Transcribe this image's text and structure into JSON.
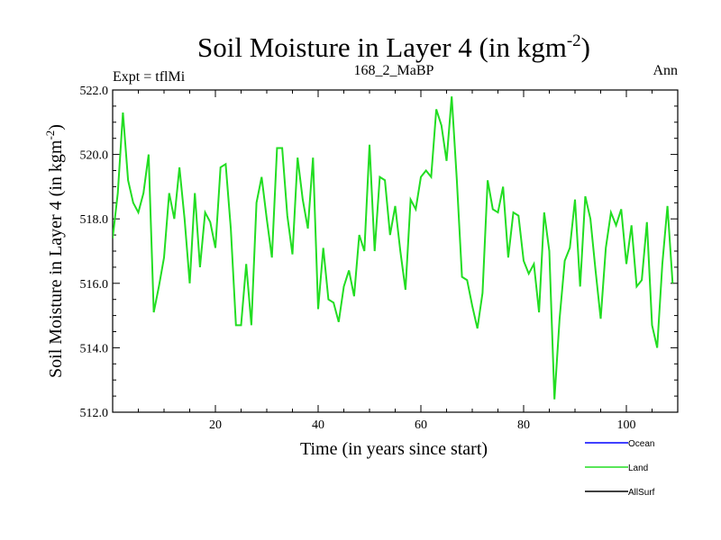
{
  "chart_data": {
    "type": "line",
    "title": "Soil Moisture in Layer 4 (in kgm",
    "title_sup": "-2",
    "title_end": ")",
    "subtitle_left": "Expt = tflMi",
    "subtitle_center": "168_2_MaBP",
    "subtitle_right": "Ann",
    "xlabel": "Time (in years since start)",
    "ylabel": "Soil Moisture in Layer 4 (in kgm",
    "ylabel_sup": "-2",
    "ylabel_end": ")",
    "xlim": [
      0,
      110
    ],
    "ylim": [
      512.0,
      522.0
    ],
    "xticks": [
      20,
      40,
      60,
      80,
      100
    ],
    "xtick_labels": [
      "20",
      "40",
      "60",
      "80",
      "100"
    ],
    "yticks": [
      512,
      514,
      516,
      518,
      520,
      522
    ],
    "ytick_labels": [
      "512.0",
      "514.0",
      "516.0",
      "518.0",
      "520.0",
      "522.0"
    ],
    "series": [
      {
        "name": "Land",
        "color": "#22dd22",
        "x_start": 0,
        "x_step": 1,
        "values": [
          517.4,
          518.8,
          521.3,
          519.2,
          518.5,
          518.2,
          518.8,
          520.0,
          515.1,
          515.9,
          516.8,
          518.8,
          518.0,
          519.6,
          518.0,
          516.0,
          518.8,
          516.5,
          518.2,
          517.9,
          517.1,
          519.6,
          519.7,
          517.7,
          514.7,
          514.7,
          516.6,
          514.7,
          518.5,
          519.3,
          518.0,
          516.8,
          520.2,
          520.2,
          518.1,
          516.9,
          519.9,
          518.6,
          517.7,
          519.9,
          515.2,
          517.1,
          515.5,
          515.4,
          514.8,
          515.9,
          516.4,
          515.6,
          517.5,
          517.0,
          520.3,
          517.0,
          519.3,
          519.2,
          517.5,
          518.4,
          517.0,
          515.8,
          518.6,
          518.3,
          519.3,
          519.5,
          519.3,
          521.4,
          520.9,
          519.8,
          521.8,
          519.2,
          516.2,
          516.1,
          515.3,
          514.6,
          515.7,
          519.2,
          518.3,
          518.2,
          519.0,
          516.8,
          518.2,
          518.1,
          516.7,
          516.3,
          516.6,
          515.1,
          518.2,
          517.0,
          512.4,
          514.9,
          516.7,
          517.1,
          518.6,
          515.9,
          518.7,
          518.0,
          516.4,
          514.9,
          517.1,
          518.2,
          517.8,
          518.3,
          516.6,
          517.8,
          515.9,
          516.1,
          517.9,
          514.7,
          514.0,
          516.6,
          518.4,
          516.0
        ]
      }
    ],
    "legend": [
      {
        "label": "Ocean",
        "color": "#0000ff"
      },
      {
        "label": "Land",
        "color": "#22dd22"
      },
      {
        "label": "AllSurf",
        "color": "#000000"
      }
    ],
    "legend_position": "bottom-right",
    "grid": false
  }
}
